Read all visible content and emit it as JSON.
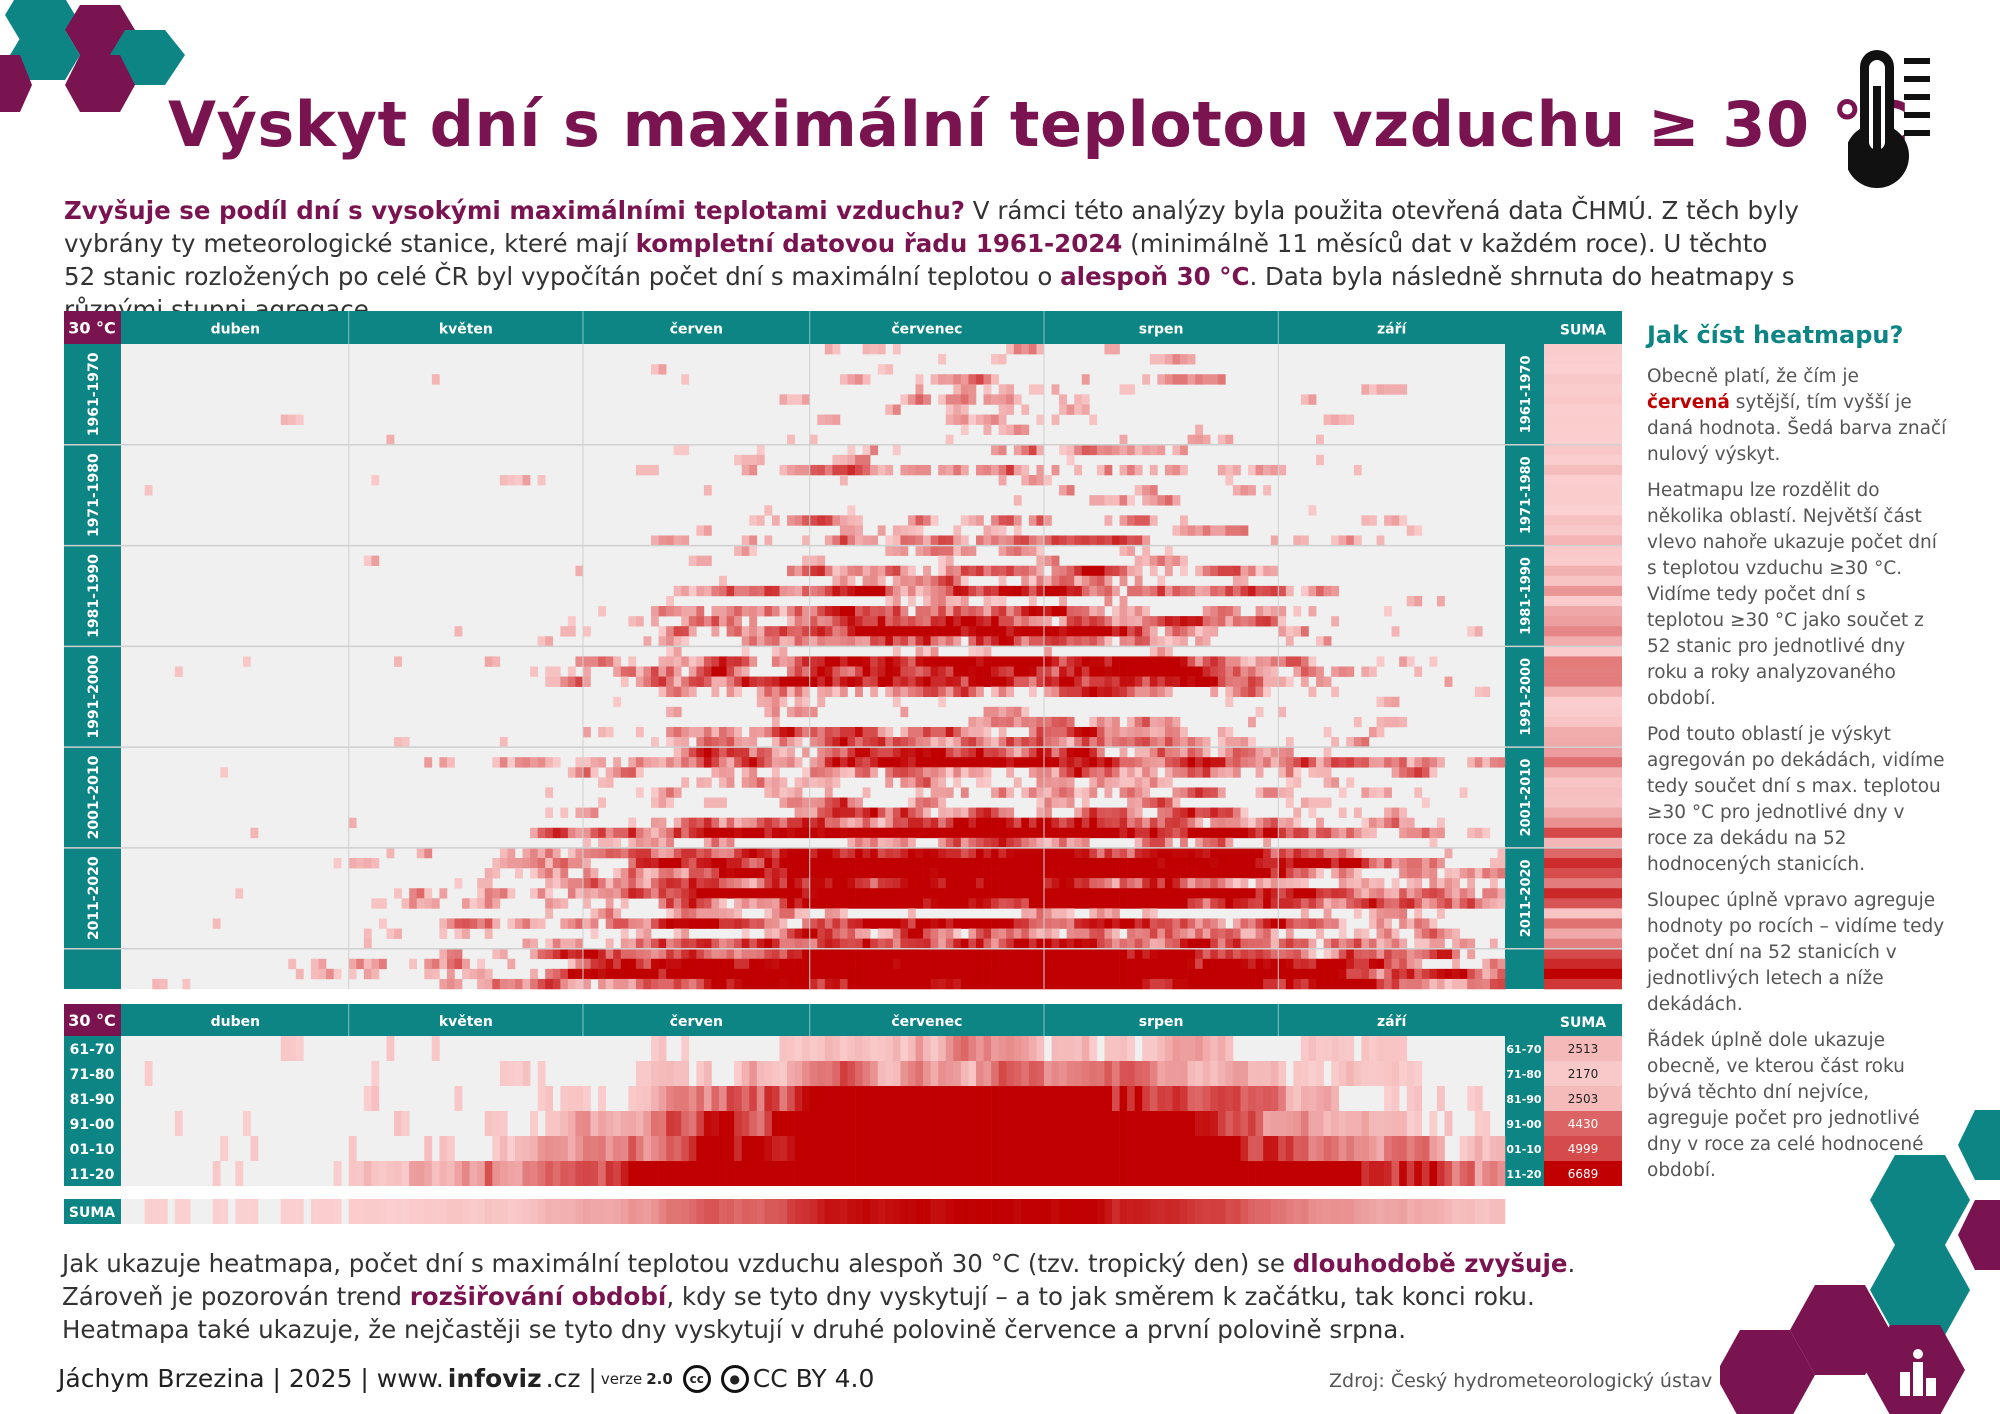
{
  "title": "Výskyt dní s maximální teplotou vzduchu ≥ 30 °C",
  "intro": [
    {
      "t": "Zvyšuje se podíl dní s vysokými maximálními teplotami vzduchu?",
      "b": true
    },
    {
      "t": " V rámci této analýzy byla použita otevřená data ČHMÚ. Z těch byly vybrány ty meteorologické stanice, které mají ",
      "b": false
    },
    {
      "t": "kompletní datovou řadu 1961-2024",
      "b": true
    },
    {
      "t": " (minimálně 11 měsíců dat v každém roce). U těchto 52 stanic rozložených po celé ČR byl vypočítán počet dní s maximální teplotou o ",
      "b": false
    },
    {
      "t": "alespoň 30 °C",
      "b": true
    },
    {
      "t": ". Data byla následně shrnuta do heatmapy s různými stupni agregace.",
      "b": false
    }
  ],
  "sidebar": {
    "heading": "Jak číst heatmapu?",
    "p1a": "Obecně platí, že čím je ",
    "p1b": "červená",
    "p1c": " sytější, tím vyšší je daná hodnota. Šedá barva značí nulový výskyt.",
    "p2": "Heatmapu lze rozdělit do několika oblastí. Největší část vlevo nahoře ukazuje počet dní s teplotou vzduchu ≥30 °C. Vidíme tedy počet dní s teplotou ≥30 °C jako součet z 52 stanic pro jednotlivé dny roku a roky analyzovaného období.",
    "p3": "Pod touto oblastí je výskyt agregován po dekádách, vidíme tedy součet dní s max. teplotou ≥30 °C pro jednotlivé dny v roce za dekádu na 52 hodnocených stanicích.",
    "p4": "Sloupec úplně vpravo agreguje hodnoty po rocích – vidíme tedy počet dní na 52 stanicích v jednotlivých letech a níže dekádách.",
    "p5": "Řádek úplně dole ukazuje obecně, ve kterou část roku bývá těchto dní nejvíce, agreguje počet pro jednotlivé dny v roce za celé hodnocené období."
  },
  "bottom": [
    {
      "t": "Jak ukazuje heatmapa, počet dní s maximální teplotou vzduchu alespoň 30 °C (tzv. tropický den) se ",
      "b": false
    },
    {
      "t": "dlouhodobě zvyšuje",
      "b": true
    },
    {
      "t": ". Zároveň je pozorován trend ",
      "b": false
    },
    {
      "t": "rozšiřování období",
      "b": true
    },
    {
      "t": ", kdy se tyto dny vyskytují – a to jak směrem k začátku, tak konci roku. Heatmapa také ukazuje, že nejčastěji se tyto dny vyskytují v druhé polovině července a první polovině srpna.",
      "b": false
    }
  ],
  "footer": {
    "author": "Jáchym Brzezina | 2025 | www.",
    "site_bold": "infoviz",
    "site_end": ".cz |",
    "version_label": "verze",
    "version": "2.0",
    "cc_icon": "cc",
    "license": "CC BY 4.0",
    "source": "Zdroj: Český hydrometeorologický ústav"
  },
  "colors": {
    "teal": "#0d8585",
    "purple": "#7a1450",
    "red": "#c00000",
    "grey": "#f0f0f0"
  },
  "chart_data": {
    "type": "heatmap",
    "corner_label": "30 °C",
    "suma_label": "SUMA",
    "months": [
      {
        "label": "duben",
        "days": 30
      },
      {
        "label": "květen",
        "days": 31
      },
      {
        "label": "červen",
        "days": 30
      },
      {
        "label": "červenec",
        "days": 31
      },
      {
        "label": "srpen",
        "days": 31
      },
      {
        "label": "září",
        "days": 30
      }
    ],
    "years": [
      1961,
      2024
    ],
    "stations": 52,
    "decade_labels": [
      "1961-1970",
      "1971-1980",
      "1981-1990",
      "1991-2000",
      "2001-2010",
      "2011-2020"
    ],
    "decades": [
      {
        "label": "61-70",
        "total": 2513
      },
      {
        "label": "71-80",
        "total": 2170
      },
      {
        "label": "81-90",
        "total": 2503
      },
      {
        "label": "91-00",
        "total": 4430
      },
      {
        "label": "01-10",
        "total": 4999
      },
      {
        "label": "11-20",
        "total": 6689
      }
    ],
    "peak_period": "late July – early August"
  }
}
